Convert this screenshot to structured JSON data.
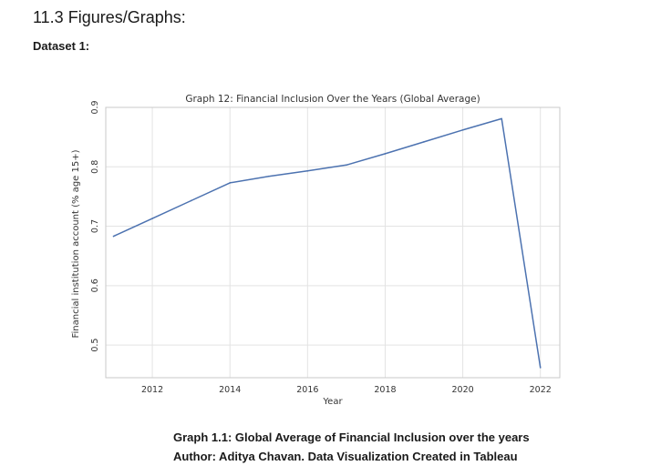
{
  "document": {
    "section_heading": "11.3 Figures/Graphs:",
    "dataset_heading": "Dataset 1:",
    "caption_line1": "Graph 1.1: Global Average of Financial Inclusion over the years",
    "caption_line2": "Author: Aditya Chavan. Data Visualization Created in Tableau"
  },
  "chart_data": {
    "type": "line",
    "title": "Graph 12: Financial Inclusion Over the Years (Global Average)",
    "xlabel": "Year",
    "ylabel": "Financial institution account (% age 15+)",
    "x": [
      2011,
      2012,
      2013,
      2014,
      2015,
      2016,
      2017,
      2018,
      2019,
      2020,
      2021,
      2022
    ],
    "series": [
      {
        "values": [
          0.683,
          0.713,
          0.743,
          0.773,
          0.784,
          0.793,
          0.803,
          0.822,
          0.842,
          0.862,
          0.881,
          0.462
        ],
        "color": "#4c72b0"
      }
    ],
    "xlim": [
      2010.8,
      2022.5
    ],
    "ylim": [
      0.445,
      0.9
    ],
    "x_ticks": [
      "2012",
      "2014",
      "2016",
      "2018",
      "2020",
      "2022"
    ],
    "y_ticks": [
      "0.5",
      "0.6",
      "0.7",
      "0.8",
      "0.9"
    ],
    "grid": true
  }
}
